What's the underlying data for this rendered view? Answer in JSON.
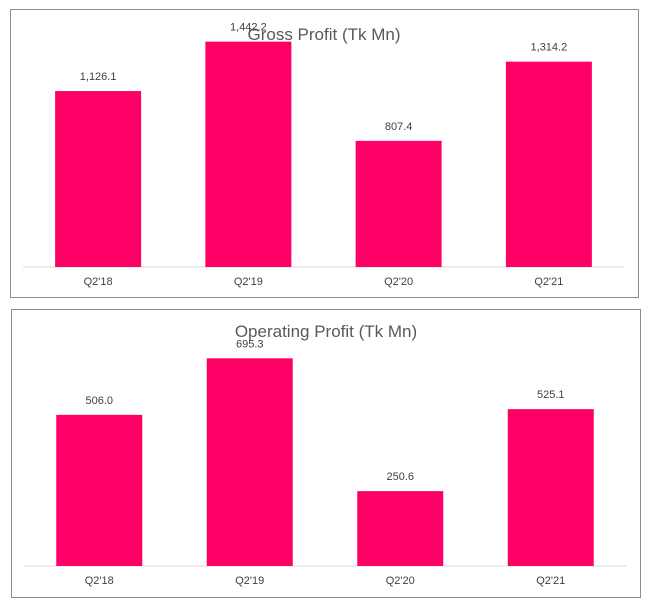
{
  "chart_data": [
    {
      "type": "bar",
      "title": "Gross Profit (Tk Mn)",
      "categories": [
        "Q2'18",
        "Q2'19",
        "Q2'20",
        "Q2'21"
      ],
      "values": [
        1126.1,
        1442.2,
        807.4,
        1314.2
      ],
      "data_labels": [
        "1,126.1",
        "1,442.2",
        "807.4",
        "1,314.2"
      ],
      "ylim": [
        0,
        1600
      ],
      "bar_color": "#ff0066",
      "grid": false
    },
    {
      "type": "bar",
      "title": "Operating Profit (Tk Mn)",
      "categories": [
        "Q2'18",
        "Q2'19",
        "Q2'20",
        "Q2'21"
      ],
      "values": [
        506.0,
        695.3,
        250.6,
        525.1
      ],
      "data_labels": [
        "506.0",
        "695.3",
        "250.6",
        "525.1"
      ],
      "ylim": [
        0,
        780
      ],
      "bar_color": "#ff0066",
      "grid": false
    }
  ]
}
